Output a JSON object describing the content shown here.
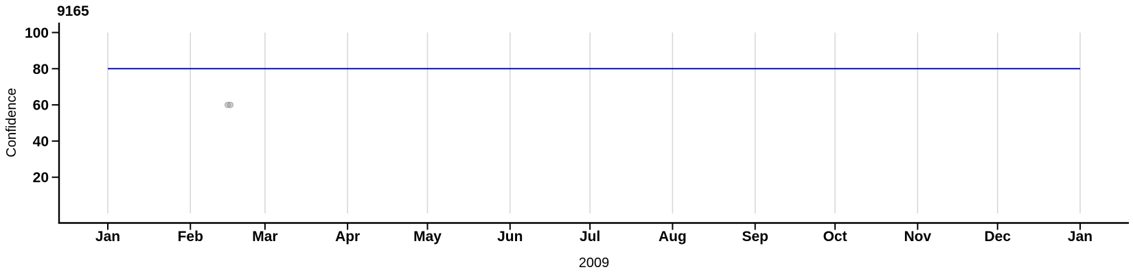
{
  "chart_data": {
    "type": "scatter",
    "title": "9165",
    "ylabel": "Confidence",
    "xlabel": "2009",
    "ylim": [
      0,
      100
    ],
    "y_ticks": [
      20,
      40,
      60,
      80,
      100
    ],
    "x_axis": {
      "unit": "month-of-2009",
      "tick_labels": [
        "Jan",
        "Feb",
        "Mar",
        "Apr",
        "May",
        "Jun",
        "Jul",
        "Aug",
        "Sep",
        "Oct",
        "Nov",
        "Dec",
        "Jan"
      ],
      "tick_day_offsets": [
        0,
        31,
        59,
        90,
        120,
        151,
        181,
        212,
        243,
        273,
        304,
        334,
        365
      ],
      "range_days": [
        0,
        365
      ]
    },
    "grid": "vertical month gridlines only",
    "legend_position": "none",
    "series": [
      {
        "name": "threshold-line",
        "type": "line",
        "color": "#0a0ac8",
        "value": 80,
        "x_start_day": 0,
        "x_end_day": 365
      },
      {
        "name": "observations",
        "type": "scatter",
        "color": "gray",
        "points": [
          {
            "x_day": 45,
            "y": 60
          },
          {
            "x_day": 46,
            "y": 60
          }
        ]
      }
    ],
    "colors": {
      "axis": "#000000",
      "grid": "#d6d6d6",
      "threshold_line": "#0a0ac8",
      "point_fill": "#9a9a9a",
      "point_stroke": "#7d7d7d"
    }
  }
}
